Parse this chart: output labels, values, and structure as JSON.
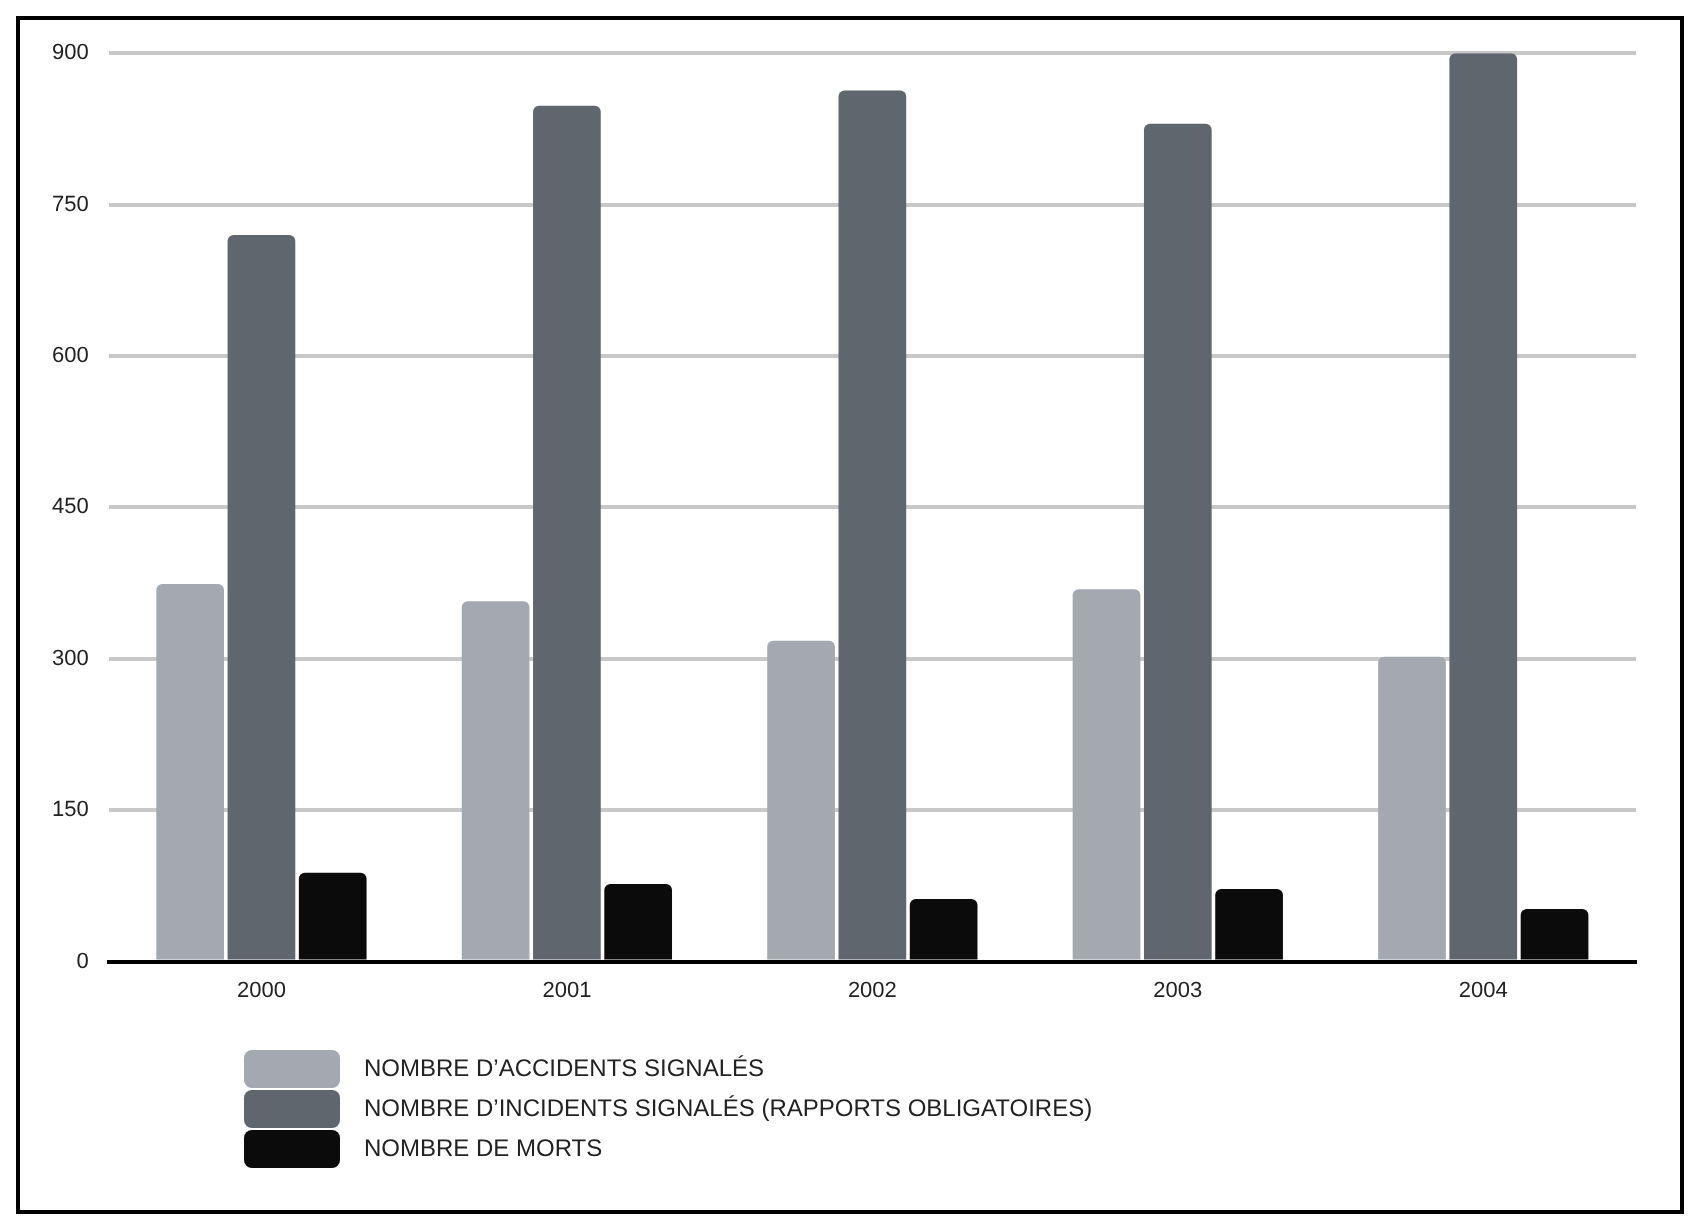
{
  "chart_data": {
    "type": "bar",
    "categories": [
      "2000",
      "2001",
      "2002",
      "2003",
      "2004"
    ],
    "series": [
      {
        "name": "NOMBRE D’ACCIDENTS SIGNALÉS",
        "color": "#a3a8b1",
        "values": [
          374,
          357,
          318,
          369,
          302
        ]
      },
      {
        "name": "NOMBRE D’INCIDENTS SIGNALÉS (RAPPORTS OBLIGATOIRES)",
        "color": "#5f666e",
        "values": [
          720,
          848,
          863,
          830,
          900
        ]
      },
      {
        "name": "NOMBRE DE MORTS",
        "color": "#0b0b0b",
        "values": [
          88,
          77,
          62,
          72,
          52
        ]
      }
    ],
    "ylim": [
      0,
      900
    ],
    "yticks": [
      0,
      150,
      300,
      450,
      600,
      750,
      900
    ],
    "grid": "y",
    "legend": "bottom left"
  }
}
